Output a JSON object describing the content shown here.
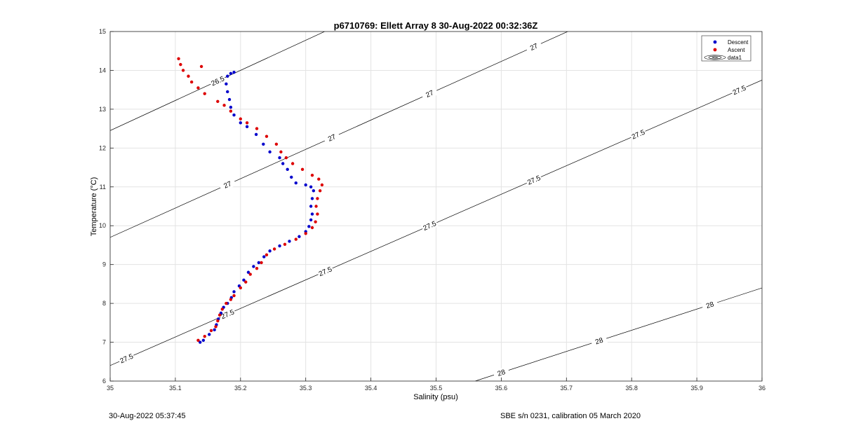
{
  "chart_data": {
    "type": "scatter",
    "title": "p6710769: Ellett Array 8 30-Aug-2022 00:32:36Z",
    "xlabel": "Salinity (psu)",
    "ylabel": "Temperature (°C)",
    "xlim": [
      35,
      36
    ],
    "ylim": [
      6,
      15
    ],
    "xticks": [
      "35",
      "35.1",
      "35.2",
      "35.3",
      "35.4",
      "35.5",
      "35.6",
      "35.7",
      "35.8",
      "35.9",
      "36"
    ],
    "yticks": [
      "6",
      "7",
      "8",
      "9",
      "10",
      "11",
      "12",
      "13",
      "14",
      "15"
    ],
    "grid": true,
    "legend_position": "top-right",
    "legend": [
      "Descent",
      "Ascent",
      "data1"
    ],
    "colors": {
      "descent": "#0000cc",
      "ascent": "#dd0000",
      "contour": "#000000",
      "grid": "#e3e3e3"
    },
    "series": [
      {
        "name": "Descent",
        "points": [
          [
            35.138,
            7.0
          ],
          [
            35.143,
            7.05
          ],
          [
            35.152,
            7.2
          ],
          [
            35.16,
            7.32
          ],
          [
            35.163,
            7.45
          ],
          [
            35.166,
            7.6
          ],
          [
            35.17,
            7.75
          ],
          [
            35.174,
            7.9
          ],
          [
            35.18,
            8.0
          ],
          [
            35.186,
            8.15
          ],
          [
            35.19,
            8.3
          ],
          [
            35.198,
            8.45
          ],
          [
            35.205,
            8.6
          ],
          [
            35.212,
            8.8
          ],
          [
            35.22,
            8.95
          ],
          [
            35.228,
            9.05
          ],
          [
            35.236,
            9.2
          ],
          [
            35.245,
            9.35
          ],
          [
            35.26,
            9.48
          ],
          [
            35.275,
            9.6
          ],
          [
            35.29,
            9.72
          ],
          [
            35.3,
            9.85
          ],
          [
            35.305,
            9.98
          ],
          [
            35.308,
            10.15
          ],
          [
            35.31,
            10.3
          ],
          [
            35.308,
            10.5
          ],
          [
            35.31,
            10.7
          ],
          [
            35.312,
            10.9
          ],
          [
            35.308,
            11.0
          ],
          [
            35.3,
            11.05
          ],
          [
            35.285,
            11.1
          ],
          [
            35.278,
            11.25
          ],
          [
            35.272,
            11.45
          ],
          [
            35.265,
            11.6
          ],
          [
            35.26,
            11.75
          ],
          [
            35.245,
            11.9
          ],
          [
            35.235,
            12.1
          ],
          [
            35.224,
            12.35
          ],
          [
            35.21,
            12.55
          ],
          [
            35.2,
            12.65
          ],
          [
            35.19,
            12.85
          ],
          [
            35.185,
            13.05
          ],
          [
            35.183,
            13.25
          ],
          [
            35.18,
            13.45
          ],
          [
            35.178,
            13.65
          ],
          [
            35.18,
            13.85
          ],
          [
            35.185,
            13.92
          ],
          [
            35.19,
            13.95
          ]
        ]
      },
      {
        "name": "Ascent",
        "points": [
          [
            35.135,
            7.05
          ],
          [
            35.145,
            7.15
          ],
          [
            35.155,
            7.3
          ],
          [
            35.162,
            7.4
          ],
          [
            35.165,
            7.55
          ],
          [
            35.168,
            7.7
          ],
          [
            35.172,
            7.85
          ],
          [
            35.178,
            8.0
          ],
          [
            35.185,
            8.1
          ],
          [
            35.19,
            8.2
          ],
          [
            35.2,
            8.4
          ],
          [
            35.208,
            8.55
          ],
          [
            35.215,
            8.75
          ],
          [
            35.225,
            8.9
          ],
          [
            35.232,
            9.05
          ],
          [
            35.24,
            9.25
          ],
          [
            35.252,
            9.4
          ],
          [
            35.268,
            9.52
          ],
          [
            35.285,
            9.65
          ],
          [
            35.3,
            9.8
          ],
          [
            35.31,
            9.95
          ],
          [
            35.315,
            10.1
          ],
          [
            35.318,
            10.3
          ],
          [
            35.316,
            10.5
          ],
          [
            35.318,
            10.7
          ],
          [
            35.322,
            10.9
          ],
          [
            35.325,
            11.05
          ],
          [
            35.32,
            11.2
          ],
          [
            35.31,
            11.3
          ],
          [
            35.295,
            11.45
          ],
          [
            35.28,
            11.6
          ],
          [
            35.27,
            11.75
          ],
          [
            35.262,
            11.9
          ],
          [
            35.255,
            12.1
          ],
          [
            35.24,
            12.3
          ],
          [
            35.225,
            12.5
          ],
          [
            35.21,
            12.65
          ],
          [
            35.2,
            12.75
          ],
          [
            35.185,
            12.95
          ],
          [
            35.175,
            13.1
          ],
          [
            35.165,
            13.2
          ],
          [
            35.145,
            13.4
          ],
          [
            35.135,
            13.55
          ],
          [
            35.125,
            13.7
          ],
          [
            35.12,
            13.85
          ],
          [
            35.112,
            14.0
          ],
          [
            35.108,
            14.15
          ],
          [
            35.105,
            14.3
          ],
          [
            35.14,
            14.1
          ]
        ]
      }
    ],
    "contours": [
      {
        "level": "26.5",
        "x0": 35,
        "y0": 12.45,
        "slope": 7.75,
        "labels": [
          35.165,
          35.33,
          35.49,
          35.65
        ]
      },
      {
        "level": "27",
        "x0": 35,
        "y0": 9.7,
        "slope": 7.55,
        "labels": [
          35.18,
          35.34,
          35.49,
          35.65,
          35.81,
          35.96
        ]
      },
      {
        "level": "27.5",
        "x0": 35,
        "y0": 6.4,
        "slope": 7.35,
        "labels": [
          35.025,
          35.18,
          35.33,
          35.49,
          35.65,
          35.81,
          35.965
        ]
      },
      {
        "level": "28",
        "x0": 35.56,
        "y0": 6.0,
        "slope": 5.45,
        "labels": [
          35.6,
          35.75,
          35.92
        ]
      }
    ]
  },
  "footer": {
    "left": "30-Aug-2022 05:37:45",
    "right": "SBE s/n 0231, calibration 05 March 2020"
  }
}
